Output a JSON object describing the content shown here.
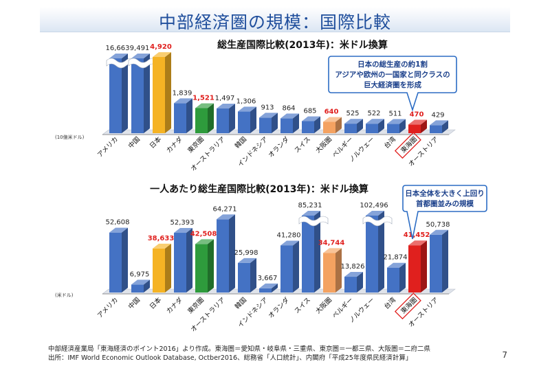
{
  "slide": {
    "title": "中部経済圏の規模：国際比較",
    "page_number": "7",
    "footer_line1": "中部経済産業局「東海経済のポイント2016」より作成。東海圏＝愛知県・岐阜県・三重県、東京圏＝一都三県、大阪圏＝二府二県",
    "footer_line2": "出所：IMF World Economic Outlook Database, Octber2016、総務省「人口統計」、内閣府「平成25年度県民経済計算」"
  },
  "colors": {
    "title": "#1f4e9c",
    "bar_blue": "#4472c4",
    "bar_japan": "#f5b324",
    "bar_tokyo": "#2e9b3c",
    "bar_osaka": "#f4a261",
    "bar_tokai": "#e0201e",
    "label_highlight": "#e0201e",
    "callout_border": "#2b6cc4",
    "callout_text": "#1a3f8a"
  },
  "chart_data": [
    {
      "type": "bar",
      "title": "総生産国際比較(2013年)：米ドル換算",
      "ylabel": "(10億米ドル)",
      "axis_broken": true,
      "categories": [
        "アメリカ",
        "中国",
        "日本",
        "カナダ",
        "東京圏",
        "オーストラリア",
        "韓国",
        "インドネシア",
        "オランダ",
        "スイス",
        "大阪圏",
        "ベルギー",
        "ノルウェー",
        "台湾",
        "東海圏",
        "オーストリア"
      ],
      "value_labels": [
        "16,663",
        "9,491",
        "4,920",
        "1,839",
        "1,521",
        "1,497",
        "1,306",
        "913",
        "864",
        "685",
        "640",
        "525",
        "522",
        "511",
        "470",
        "429"
      ],
      "values": [
        16663,
        9491,
        4920,
        1839,
        1521,
        1497,
        1306,
        913,
        864,
        685,
        640,
        525,
        522,
        511,
        470,
        429
      ],
      "colors": [
        "#4472c4",
        "#4472c4",
        "#f5b324",
        "#4472c4",
        "#2e9b3c",
        "#4472c4",
        "#4472c4",
        "#4472c4",
        "#4472c4",
        "#4472c4",
        "#f4a261",
        "#4472c4",
        "#4472c4",
        "#4472c4",
        "#e0201e",
        "#4472c4"
      ],
      "highlight_labels": [
        2,
        4,
        10,
        14
      ],
      "callout": {
        "lines": [
          "日本の総生産の約1割",
          "アジアや欧州の一国家と同クラスの",
          "巨大経済圏を形成"
        ],
        "points_to": "東海圏"
      }
    },
    {
      "type": "bar",
      "title": "一人あたり総生産国際比較(2013年)：米ドル換算",
      "ylabel": "(米ドル)",
      "axis_broken": true,
      "categories": [
        "アメリカ",
        "中国",
        "日本",
        "カナダ",
        "東京圏",
        "オーストラリア",
        "韓国",
        "インドネシア",
        "オランダ",
        "スイス",
        "大阪圏",
        "ベルギー",
        "ノルウェー",
        "台湾",
        "東海圏",
        "オーストリア"
      ],
      "value_labels": [
        "52,608",
        "6,975",
        "38,633",
        "52,393",
        "42,508",
        "64,271",
        "25,998",
        "3,667",
        "41,280",
        "85,231",
        "34,744",
        "13,826",
        "102,496",
        "21,874",
        "41,452",
        "50,738"
      ],
      "values": [
        52608,
        6975,
        38633,
        52393,
        42508,
        64271,
        25998,
        3667,
        41280,
        85231,
        34744,
        13826,
        102496,
        21874,
        41452,
        50738
      ],
      "colors": [
        "#4472c4",
        "#4472c4",
        "#f5b324",
        "#4472c4",
        "#2e9b3c",
        "#4472c4",
        "#4472c4",
        "#4472c4",
        "#4472c4",
        "#4472c4",
        "#f4a261",
        "#4472c4",
        "#4472c4",
        "#4472c4",
        "#e0201e",
        "#4472c4"
      ],
      "highlight_labels": [
        2,
        4,
        10,
        14
      ],
      "callout": {
        "lines": [
          "日本全体を大きく上回り",
          "首都圏並みの規模"
        ],
        "points_to": "東海圏"
      }
    }
  ]
}
